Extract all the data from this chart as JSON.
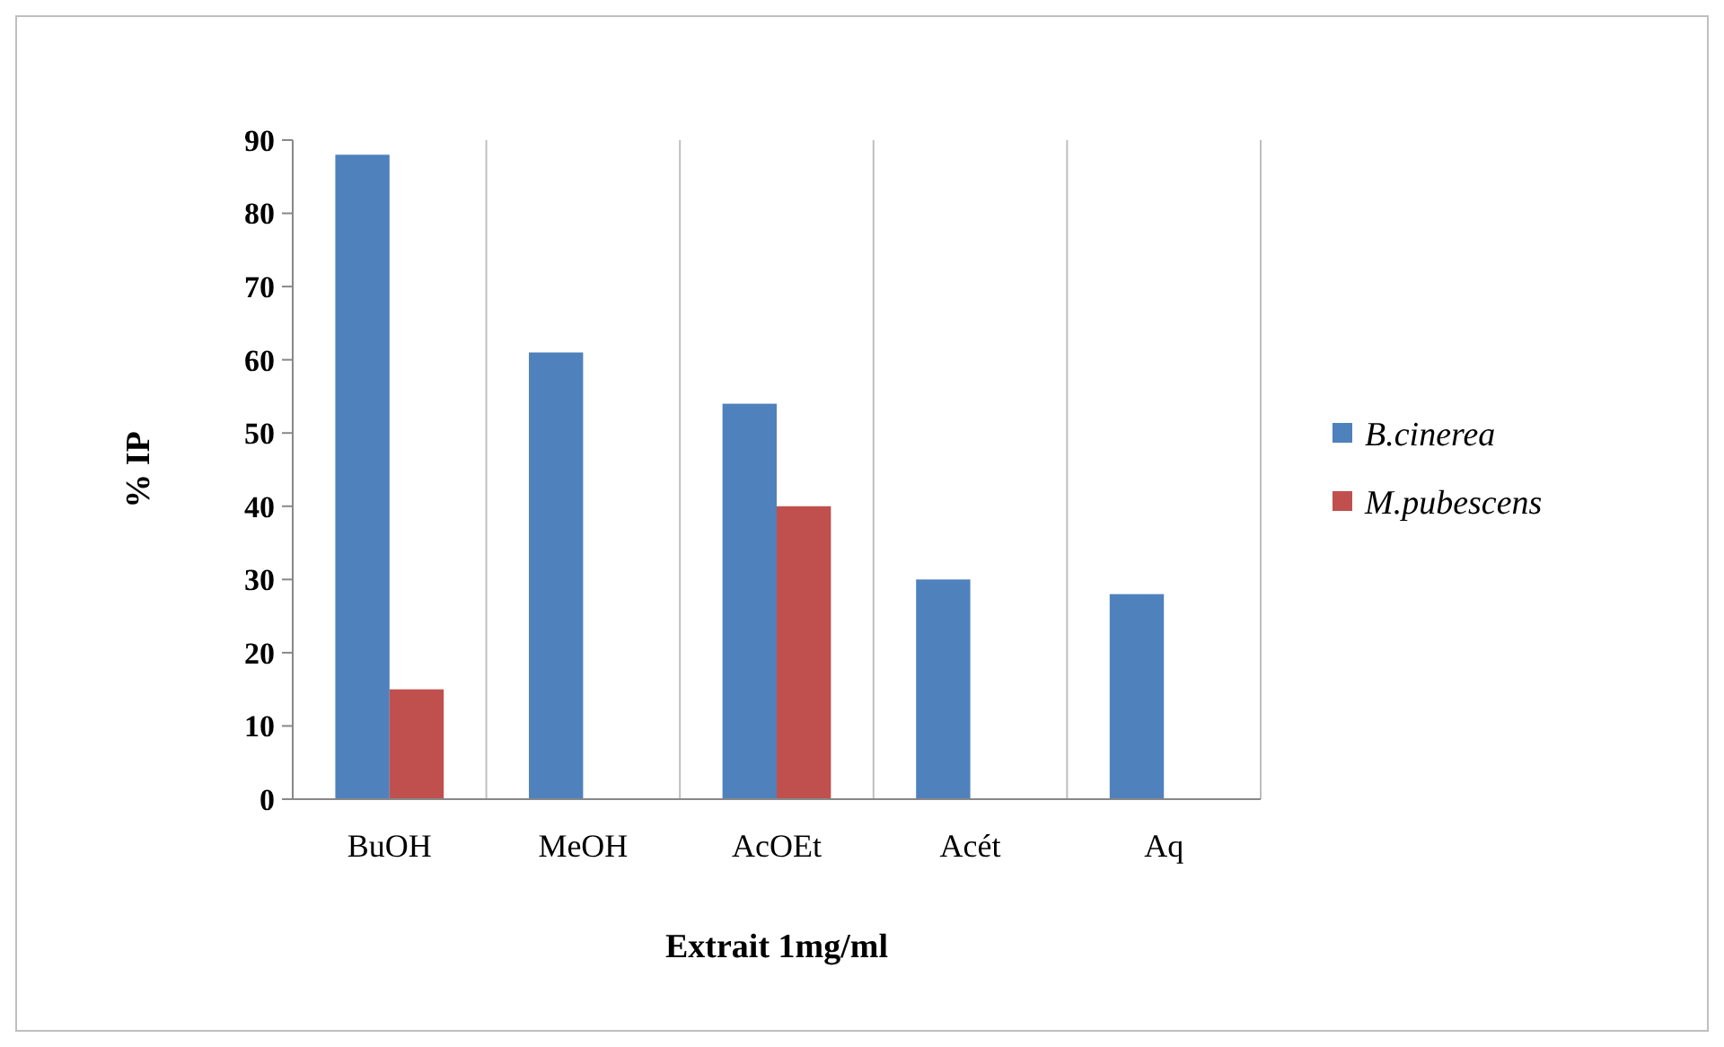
{
  "chart_data": {
    "type": "bar",
    "xlabel": "Extrait 1mg/ml",
    "ylabel": "% IP",
    "categories": [
      "BuOH",
      "MeOH",
      "AcOEt",
      "Acét",
      "Aq"
    ],
    "series": [
      {
        "name": "B.cinerea",
        "color": "#4f81bd",
        "values": [
          88,
          61,
          54,
          30,
          28
        ]
      },
      {
        "name": "M.pubescens",
        "color": "#c0504d",
        "values": [
          15,
          null,
          40,
          null,
          null
        ]
      }
    ],
    "ylim": [
      0,
      90
    ],
    "yticks": [
      0,
      10,
      20,
      30,
      40,
      50,
      60,
      70,
      80,
      90
    ],
    "grid": "x",
    "legend": "right"
  }
}
